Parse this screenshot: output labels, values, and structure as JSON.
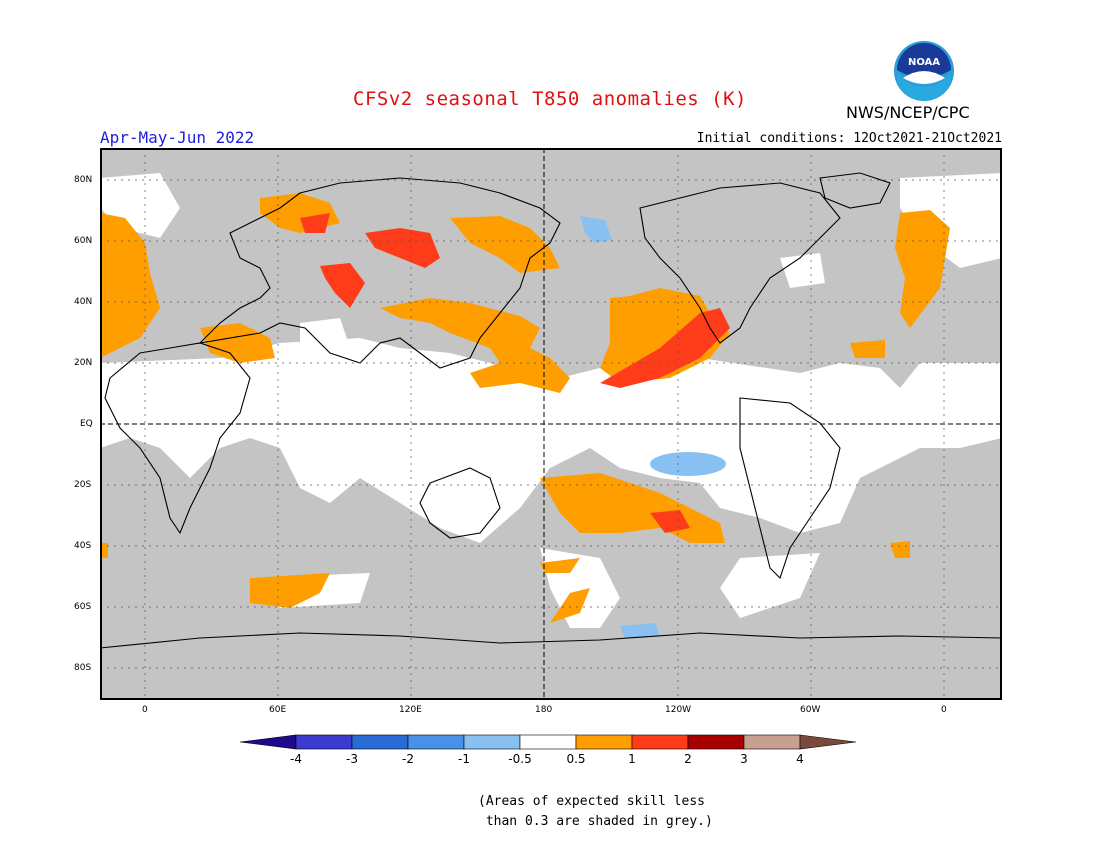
{
  "title": "CFSv2 seasonal T850 anomalies (K)",
  "season": "Apr-May-Jun 2022",
  "initial_conditions": "Initial conditions: 12Oct2021-21Oct2021",
  "agency": "NWS/NCEP/CPC",
  "logo_text": "NOAA",
  "lat_labels": [
    "80N",
    "60N",
    "40N",
    "20N",
    "EQ",
    "20S",
    "40S",
    "60S",
    "80S"
  ],
  "lon_labels": [
    "0",
    "60E",
    "120E",
    "180",
    "120W",
    "60W",
    "0"
  ],
  "colorbar": {
    "labels": [
      "-4",
      "-3",
      "-2",
      "-1",
      "-0.5",
      "0.5",
      "1",
      "2",
      "3",
      "4"
    ],
    "colors": [
      "#1e0a8c",
      "#3b3bce",
      "#2a6ad6",
      "#4a90e6",
      "#88c0f2",
      "#ffffff",
      "#ff9e00",
      "#ff3c1a",
      "#a80000",
      "#c8a090",
      "#7a4a3c"
    ]
  },
  "note": "(Areas of expected skill less\n than 0.3 are shaded in grey.)",
  "colors": {
    "grey": "#c4c4c4",
    "warm1": "#ff9e00",
    "warm2": "#ff3c1a",
    "cool1": "#88c0f2"
  }
}
